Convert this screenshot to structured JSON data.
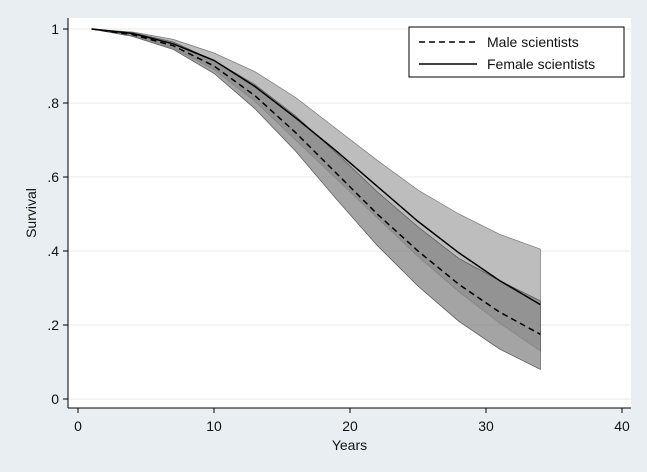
{
  "chart_data": {
    "type": "line",
    "title": "",
    "xlabel": "Years",
    "ylabel": "Survival",
    "xlim": [
      0,
      40
    ],
    "ylim": [
      0,
      1
    ],
    "x_ticks": [
      0,
      10,
      20,
      30,
      40
    ],
    "x_tick_labels": [
      "0",
      "10",
      "20",
      "30",
      "40"
    ],
    "y_ticks": [
      0,
      0.2,
      0.4,
      0.6,
      0.8,
      1
    ],
    "y_tick_labels": [
      "0",
      ".2",
      ".4",
      ".6",
      ".8",
      "1"
    ],
    "grid": "horizontal",
    "legend_position": "top-right",
    "x": [
      1,
      4,
      7,
      10,
      13,
      16,
      19,
      22,
      25,
      28,
      31,
      34
    ],
    "series": [
      {
        "name": "Male scientists",
        "style": "dashed",
        "color": "#000000",
        "values": [
          1.0,
          0.985,
          0.955,
          0.9,
          0.82,
          0.72,
          0.61,
          0.5,
          0.4,
          0.31,
          0.235,
          0.175
        ],
        "ci_lower": [
          1.0,
          0.98,
          0.945,
          0.88,
          0.785,
          0.67,
          0.54,
          0.415,
          0.305,
          0.21,
          0.135,
          0.08
        ],
        "ci_upper": [
          1.0,
          0.99,
          0.965,
          0.915,
          0.85,
          0.765,
          0.665,
          0.56,
          0.465,
          0.38,
          0.32,
          0.265
        ],
        "ci_fill": "#858585"
      },
      {
        "name": "Female scientists",
        "style": "solid",
        "color": "#000000",
        "values": [
          1.0,
          0.988,
          0.96,
          0.915,
          0.845,
          0.76,
          0.67,
          0.575,
          0.48,
          0.395,
          0.32,
          0.255
        ],
        "ci_lower": [
          1.0,
          0.983,
          0.948,
          0.89,
          0.805,
          0.7,
          0.595,
          0.49,
          0.385,
          0.29,
          0.205,
          0.13
        ],
        "ci_upper": [
          1.0,
          0.992,
          0.972,
          0.935,
          0.885,
          0.815,
          0.73,
          0.645,
          0.565,
          0.5,
          0.445,
          0.405
        ],
        "ci_fill": "#bdbdbd"
      }
    ],
    "colors": {
      "background": "#e9eef2",
      "plot_background": "#ffffff",
      "overlap": "#6d6d6d"
    }
  }
}
